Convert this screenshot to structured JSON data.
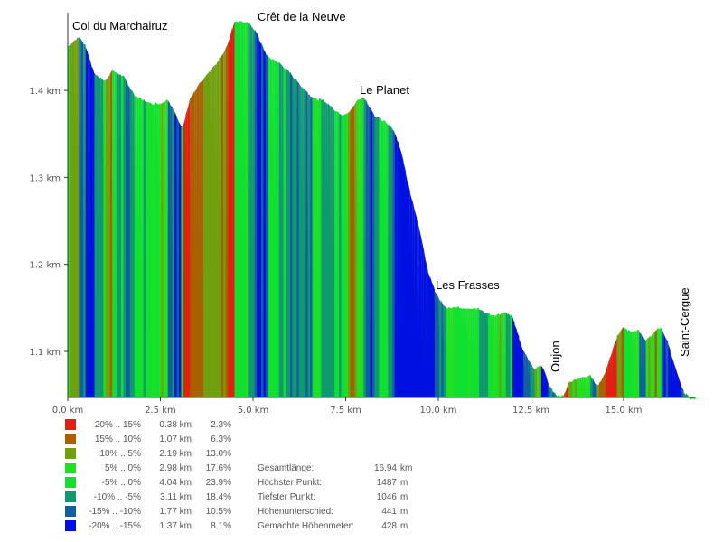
{
  "chart_data": {
    "type": "area",
    "title": "",
    "xlabel": "",
    "ylabel": "",
    "xlim": [
      0,
      16.94
    ],
    "ylim": [
      1.047,
      1.49
    ],
    "x_ticks": [
      "0.0 km",
      "2.5 km",
      "5.0 km",
      "7.5 km",
      "10.0 km",
      "12.5 km",
      "15.0 km"
    ],
    "x_tick_values": [
      0,
      2.5,
      5,
      7.5,
      10,
      12.5,
      15
    ],
    "y_ticks": [
      "1.1 km",
      "1.2 km",
      "1.3 km",
      "1.4 km"
    ],
    "y_tick_values": [
      1.1,
      1.2,
      1.3,
      1.4
    ],
    "profile_km": [
      0,
      0.3,
      0.5,
      0.7,
      1.0,
      1.2,
      1.5,
      1.8,
      2.0,
      2.2,
      2.5,
      2.7,
      3.0,
      3.1,
      3.3,
      3.6,
      4.0,
      4.3,
      4.5,
      4.7,
      4.9,
      5.1,
      5.4,
      5.7,
      6.0,
      6.3,
      6.6,
      6.9,
      7.2,
      7.4,
      7.6,
      7.8,
      8.0,
      8.3,
      8.6,
      8.8,
      9.0,
      9.2,
      9.5,
      9.7,
      9.9,
      10.0,
      10.2,
      11.0,
      11.5,
      11.8,
      12.0,
      12.3,
      12.6,
      12.8,
      13.0,
      13.2,
      13.4,
      13.5,
      13.7,
      14.1,
      14.3,
      14.5,
      14.8,
      15.0,
      15.2,
      15.4,
      15.6,
      15.9,
      16.0,
      16.2,
      16.4,
      16.6,
      16.8,
      16.94
    ],
    "profile_m": [
      1450,
      1462,
      1450,
      1420,
      1410,
      1423,
      1416,
      1395,
      1390,
      1385,
      1385,
      1390,
      1365,
      1357,
      1390,
      1410,
      1430,
      1450,
      1480,
      1479,
      1478,
      1465,
      1438,
      1432,
      1420,
      1405,
      1392,
      1388,
      1378,
      1372,
      1375,
      1388,
      1392,
      1370,
      1363,
      1355,
      1330,
      1290,
      1240,
      1195,
      1170,
      1162,
      1150,
      1150,
      1140,
      1145,
      1140,
      1100,
      1080,
      1085,
      1060,
      1048,
      1050,
      1063,
      1068,
      1072,
      1060,
      1075,
      1115,
      1128,
      1122,
      1125,
      1112,
      1125,
      1128,
      1110,
      1080,
      1055,
      1046,
      1046
    ],
    "annotations": [
      {
        "text": "Col du Marchairuz",
        "km": 0.1
      },
      {
        "text": "Crêt de la Neuve",
        "km": 5.1
      },
      {
        "text": "Le Planet",
        "km": 7.9
      },
      {
        "text": "Les Frasses",
        "km": 9.9
      },
      {
        "text": "Oujon",
        "km": 13.4
      },
      {
        "text": "Saint-Cergue",
        "km": 16.7
      }
    ],
    "legend": [
      {
        "from": "20%",
        "to": "15%",
        "dist": "0.38 km",
        "pct": "2.3%",
        "color": "#e02010"
      },
      {
        "from": "15%",
        "to": "10%",
        "dist": "1.07 km",
        "pct": "6.3%",
        "color": "#a86000"
      },
      {
        "from": "10%",
        "to": "5%",
        "dist": "2.19 km",
        "pct": "13.0%",
        "color": "#70a010"
      },
      {
        "from": "5%",
        "to": "0%",
        "dist": "2.98 km",
        "pct": "17.6%",
        "color": "#20e020"
      },
      {
        "from": "-5%",
        "to": "0%",
        "dist": "4.04 km",
        "pct": "23.9%",
        "color": "#10e030"
      },
      {
        "from": "-10%",
        "to": "-5%",
        "dist": "3.11 km",
        "pct": "18.4%",
        "color": "#109870"
      },
      {
        "from": "-15%",
        "to": "-10%",
        "dist": "1.77 km",
        "pct": "10.5%",
        "color": "#1060a0"
      },
      {
        "from": "-20%",
        "to": "-15%",
        "dist": "1.37 km",
        "pct": "8.1%",
        "color": "#0010e0"
      }
    ],
    "stats": [
      {
        "label": "Gesamtlänge:",
        "value": "16.94",
        "unit": "km"
      },
      {
        "label": "Höchster Punkt:",
        "value": "1487",
        "unit": "m"
      },
      {
        "label": "Tiefster Punkt:",
        "value": "1046",
        "unit": "m"
      },
      {
        "label": "Höhenunterschied:",
        "value": "441",
        "unit": "m"
      },
      {
        "label": "Gemachte Höhenmeter:",
        "value": "428",
        "unit": "m"
      }
    ]
  }
}
